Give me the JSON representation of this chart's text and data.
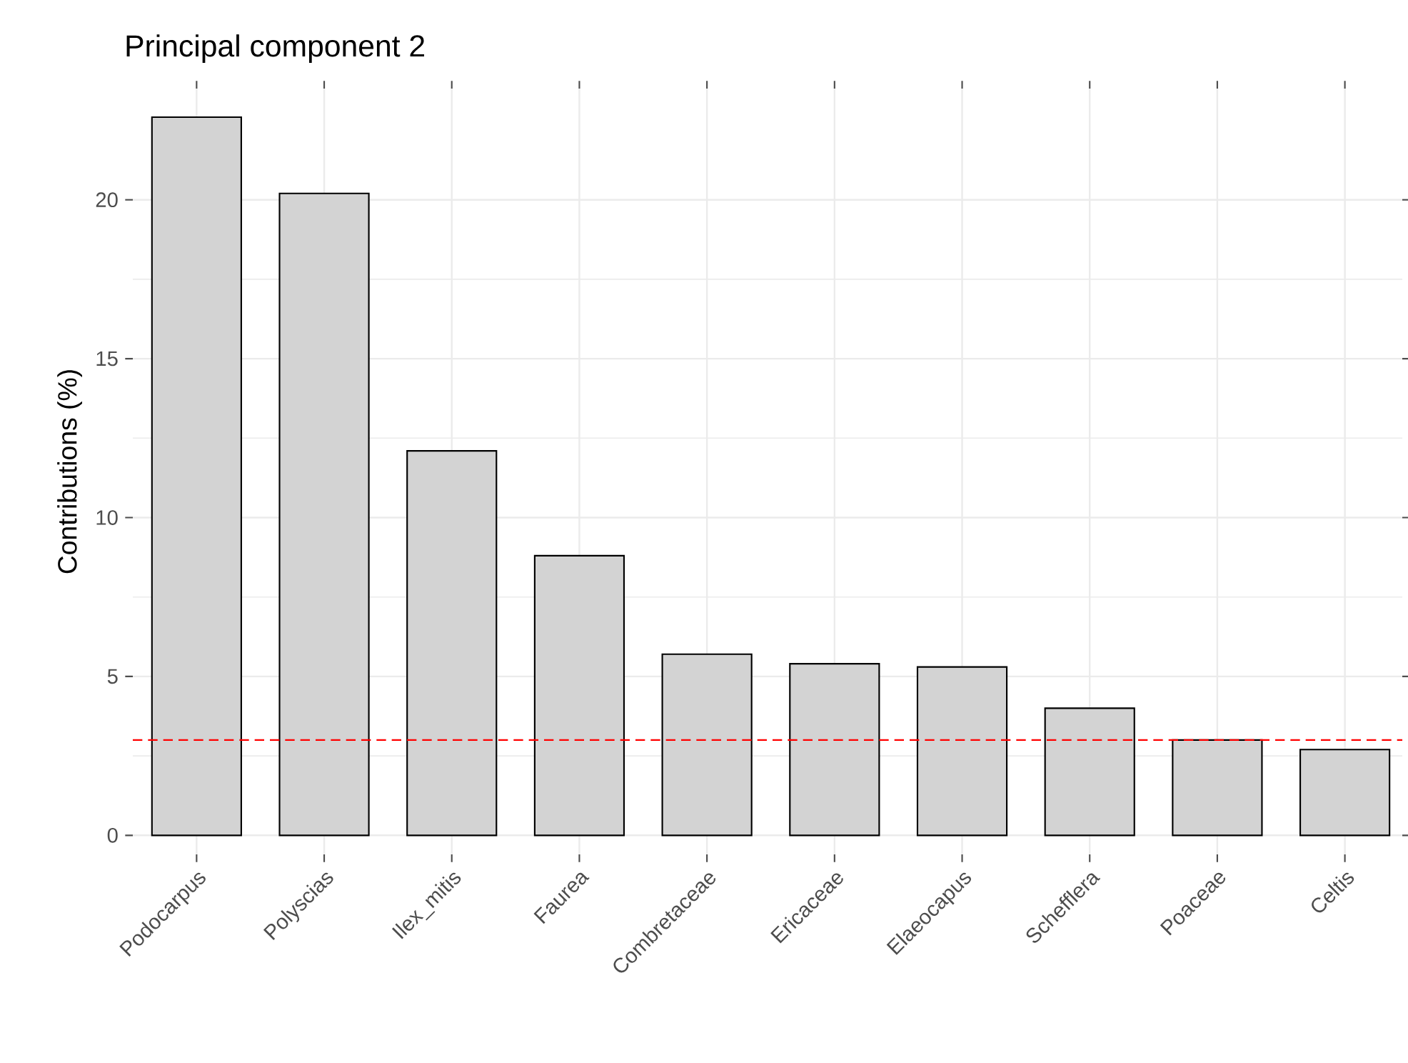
{
  "chart_data": {
    "type": "bar",
    "title": "Principal component 2",
    "ylabel": "Contributions (%)",
    "categories": [
      "Podocarpus",
      "Polyscias",
      "Ilex_mitis",
      "Faurea",
      "Combretaceae",
      "Ericaceae",
      "Elaeocapus",
      "Schefflera",
      "Poaceae",
      "Celtis"
    ],
    "values": [
      22.6,
      20.2,
      12.1,
      8.8,
      5.7,
      5.4,
      5.3,
      4.0,
      3.0,
      2.7
    ],
    "color": "#d3d3d3",
    "ylim": [
      -0.6,
      23.5
    ],
    "yticks": [
      0,
      5,
      10,
      15,
      20
    ],
    "grid": true,
    "ref_lines": [
      {
        "axis": "y",
        "value": 3,
        "color": "#ff0000",
        "line_style": "dashed"
      }
    ]
  }
}
